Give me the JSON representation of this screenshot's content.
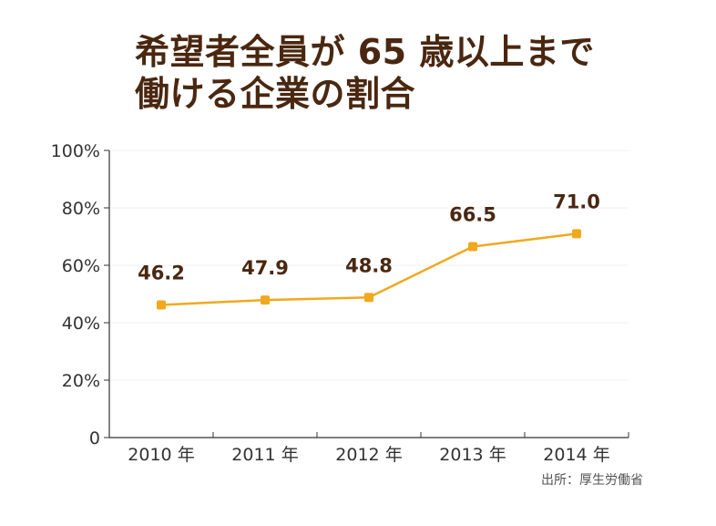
{
  "chart_data": {
    "type": "line",
    "title_lines": [
      "希望者全員が 65 歳以上まで",
      "働ける企業の割合"
    ],
    "categories": [
      "2010 年",
      "2011 年",
      "2012 年",
      "2013 年",
      "2014 年"
    ],
    "series": [
      {
        "values": [
          46.2,
          47.9,
          48.8,
          66.5,
          71.0
        ]
      }
    ],
    "data_labels": [
      "46.2",
      "47.9",
      "48.8",
      "66.5",
      "71.0"
    ],
    "yticks": [
      "0",
      "20%",
      "40%",
      "60%",
      "80%",
      "100%"
    ],
    "ylim": [
      0,
      100
    ],
    "grid": true,
    "legend": "none",
    "colors": {
      "line": "#f2a81d",
      "title": "#4a2710",
      "labels": "#4a2710",
      "axis": "#333333",
      "grid": "#f2f2f2"
    }
  },
  "source": "出所：厚生労働省"
}
